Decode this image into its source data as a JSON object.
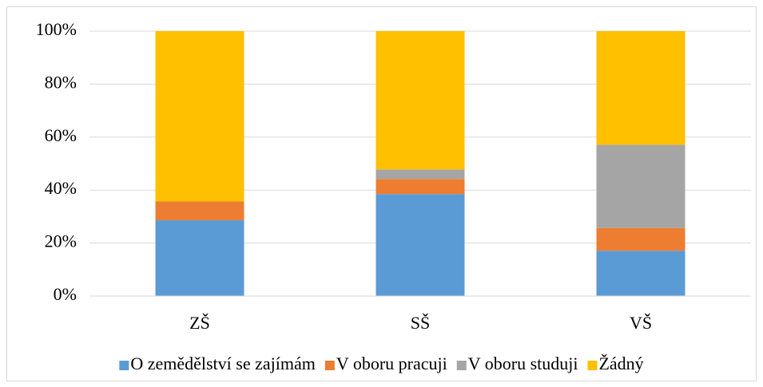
{
  "chart_data": {
    "type": "stacked_bar",
    "categories": [
      "ZŠ",
      "SŠ",
      "VŠ"
    ],
    "series": [
      {
        "name": "O zemědělství se zajímám",
        "color": "#5b9bd5",
        "values": [
          28.6,
          38.5,
          17.1
        ]
      },
      {
        "name": "V oboru pracuji",
        "color": "#ed7d31",
        "values": [
          7.1,
          5.7,
          8.6
        ]
      },
      {
        "name": "V oboru studuji",
        "color": "#a5a5a5",
        "values": [
          0,
          3.6,
          31.4
        ]
      },
      {
        "name": "Žádný",
        "color": "#ffc000",
        "values": [
          64.3,
          52.2,
          42.9
        ]
      }
    ],
    "ylim": [
      0,
      100
    ],
    "yticks": [
      {
        "value": 0,
        "label": "0%"
      },
      {
        "value": 20,
        "label": "20%"
      },
      {
        "value": 40,
        "label": "40%"
      },
      {
        "value": 60,
        "label": "60%"
      },
      {
        "value": 80,
        "label": "80%"
      },
      {
        "value": 100,
        "label": "100%"
      }
    ],
    "grid": true,
    "legend": "bottom"
  }
}
